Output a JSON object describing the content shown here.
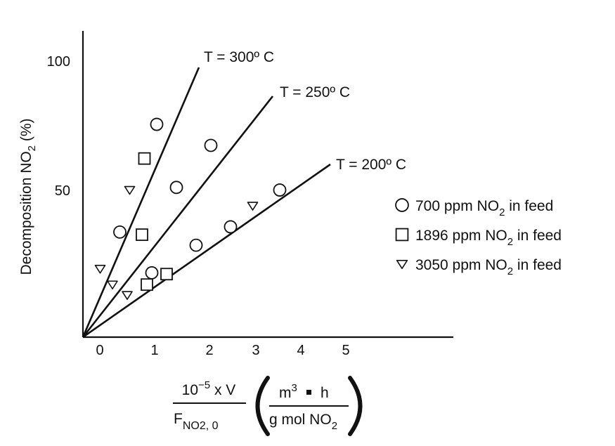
{
  "chart_data": {
    "type": "scatter",
    "xlim": [
      -0.35,
      7.8
    ],
    "ylim": [
      0,
      115
    ],
    "x_ticks": [
      "0",
      "1",
      "2",
      "3",
      "4",
      "5"
    ],
    "y_ticks": [
      "50",
      "100"
    ],
    "ylabel": {
      "text": "Decomposition NO",
      "sub": "2",
      "tail": " (%)"
    },
    "xlabel": {
      "num_base": "10",
      "num_sup": "−5",
      "num_tail": " x V",
      "den_base": "F",
      "den_sub": "NO2, 0",
      "unit_num_base": "m",
      "unit_num_sup": "3",
      "unit_num_tail": "h",
      "unit_den_text": "g mol NO",
      "unit_den_sub": "2"
    },
    "series": [
      {
        "name": "T = 300º C",
        "slope": 56,
        "points": [
          {
            "x": 0.75,
            "y": 40,
            "marker": "circle"
          },
          {
            "x": 1.5,
            "y": 81,
            "marker": "circle"
          },
          {
            "x": 1.25,
            "y": 68,
            "marker": "square"
          },
          {
            "x": 0.35,
            "y": 26,
            "marker": "triangle"
          },
          {
            "x": 0.95,
            "y": 56,
            "marker": "triangle"
          }
        ]
      },
      {
        "name": "T = 250º C",
        "slope": 30,
        "points": [
          {
            "x": 1.9,
            "y": 57,
            "marker": "circle"
          },
          {
            "x": 2.6,
            "y": 73,
            "marker": "circle"
          },
          {
            "x": 1.2,
            "y": 39,
            "marker": "square"
          },
          {
            "x": 0.6,
            "y": 20,
            "marker": "triangle"
          }
        ]
      },
      {
        "name": "T = 200º C",
        "slope": 13.5,
        "points": [
          {
            "x": 1.4,
            "y": 24.5,
            "marker": "circle"
          },
          {
            "x": 2.3,
            "y": 35,
            "marker": "circle"
          },
          {
            "x": 3.0,
            "y": 42,
            "marker": "circle"
          },
          {
            "x": 4.0,
            "y": 56,
            "marker": "circle"
          },
          {
            "x": 1.3,
            "y": 20,
            "marker": "square"
          },
          {
            "x": 1.7,
            "y": 24,
            "marker": "square"
          },
          {
            "x": 0.9,
            "y": 16,
            "marker": "triangle"
          },
          {
            "x": 3.45,
            "y": 50,
            "marker": "triangle"
          }
        ]
      }
    ],
    "legend": {
      "placement": "right",
      "entries": [
        {
          "marker": "circle",
          "text": "700 ppm NO",
          "sub": "2",
          "tail": " in feed"
        },
        {
          "marker": "square",
          "text": "1896 ppm NO",
          "sub": "2",
          "tail": " in feed"
        },
        {
          "marker": "triangle",
          "text": "3050 ppm NO",
          "sub": "2",
          "tail": " in feed"
        }
      ]
    },
    "grid": false
  }
}
